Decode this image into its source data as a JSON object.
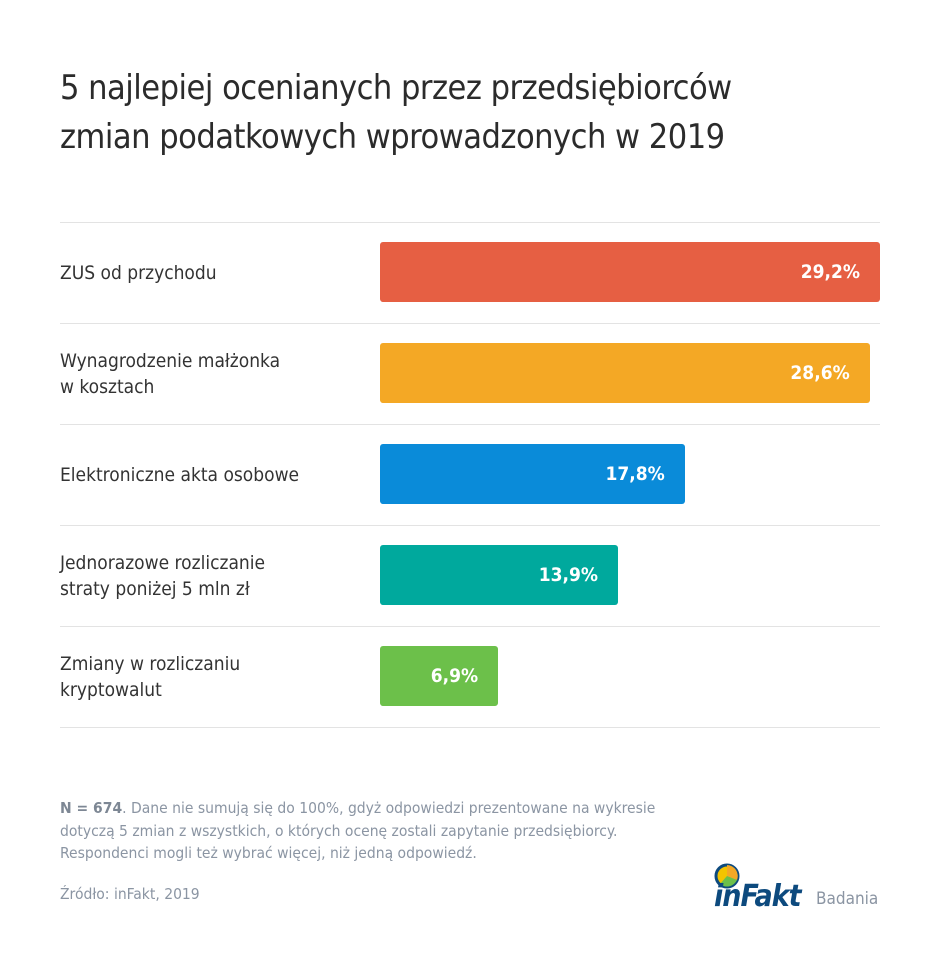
{
  "title_line1": "5 najlepiej ocenianych przez przedsiębiorców",
  "title_line2": "zmian podatkowych wprowadzonych w 2019",
  "chart_data": {
    "type": "bar",
    "orientation": "horizontal",
    "title": "5 najlepiej ocenianych przez przedsiębiorców zmian podatkowych wprowadzonych w 2019",
    "categories": [
      "ZUS od przychodu",
      "Wynagrodzenie małżonka w kosztach",
      "Elektroniczne akta osobowe",
      "Jednorazowe rozliczanie straty poniżej 5 mln zł",
      "Zmiany w rozliczaniu kryptowalut"
    ],
    "category_lines": [
      [
        "ZUS od przychodu"
      ],
      [
        "Wynagrodzenie małżonka",
        "w kosztach"
      ],
      [
        "Elektroniczne akta osobowe"
      ],
      [
        "Jednorazowe rozliczanie",
        "straty poniżej 5 mln zł"
      ],
      [
        "Zmiany w rozliczaniu",
        "kryptowalut"
      ]
    ],
    "values": [
      29.2,
      28.6,
      17.8,
      13.9,
      6.9
    ],
    "data_labels": [
      "29,2%",
      "28,6%",
      "17,8%",
      "13,9%",
      "6,9%"
    ],
    "colors": [
      "#e65f43",
      "#f4a825",
      "#0a8bd9",
      "#00a99d",
      "#6cc04a"
    ],
    "grid": false,
    "legend": "none"
  },
  "note": {
    "bold": "N = 674",
    "text": ". Dane nie sumują się do 100%, gdyż odpowiedzi prezentowane na wykresie dotyczą 5 zmian z wszystkich, o których ocenę zostali zapytanie przedsiębiorcy. Respondenci mogli też wybrać więcej, niż jedną odpowiedź."
  },
  "source": "Źródło: inFakt, 2019",
  "logo": {
    "brand": "inFakt",
    "sub": "Badania"
  }
}
